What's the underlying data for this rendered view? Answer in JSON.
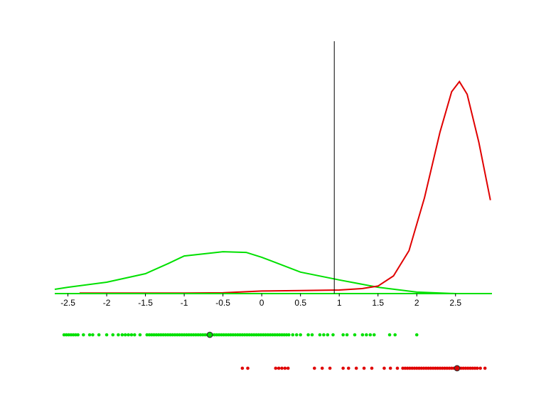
{
  "chart_data": {
    "type": "line",
    "xlim": [
      -2.67,
      2.97
    ],
    "ylim": [
      0,
      1
    ],
    "xticks": [
      -2.5,
      -2,
      -1.5,
      -1,
      -0.5,
      0,
      0.5,
      1,
      1.5,
      2,
      2.5
    ],
    "vline": 0.936,
    "series": [
      {
        "color": "#00e000",
        "x": [
          -2.67,
          -2.5,
          -2,
          -1.5,
          -1.2,
          -1,
          -0.5,
          -0.2,
          0,
          0.5,
          1,
          1.5,
          2,
          2.5,
          2.95
        ],
        "values": [
          0.017,
          0.025,
          0.045,
          0.079,
          0.12,
          0.149,
          0.166,
          0.163,
          0.144,
          0.085,
          0.054,
          0.025,
          0.006,
          0,
          0
        ],
        "rug": [
          -2.55,
          -2.52,
          -2.49,
          -2.46,
          -2.43,
          -2.4,
          -2.37,
          -2.3,
          -2.22,
          -2.18,
          -2.1,
          -2.0,
          -1.92,
          -1.85,
          -1.8,
          -1.76,
          -1.72,
          -1.68,
          -1.64,
          -1.57,
          -1.48,
          -1.45,
          -1.42,
          -1.39,
          -1.36,
          -1.33,
          -1.3,
          -1.27,
          -1.24,
          -1.21,
          -1.18,
          -1.15,
          -1.12,
          -1.09,
          -1.06,
          -1.03,
          -1.0,
          -0.97,
          -0.94,
          -0.91,
          -0.88,
          -0.85,
          -0.82,
          -0.79,
          -0.76,
          -0.73,
          -0.7,
          -0.67,
          -0.64,
          -0.61,
          -0.58,
          -0.55,
          -0.52,
          -0.49,
          -0.46,
          -0.43,
          -0.4,
          -0.37,
          -0.34,
          -0.31,
          -0.28,
          -0.25,
          -0.22,
          -0.19,
          -0.16,
          -0.13,
          -0.1,
          -0.07,
          -0.04,
          -0.01,
          0.02,
          0.05,
          0.08,
          0.11,
          0.14,
          0.17,
          0.2,
          0.23,
          0.26,
          0.29,
          0.32,
          0.35,
          0.4,
          0.45,
          0.5,
          0.6,
          0.65,
          0.75,
          0.8,
          0.85,
          0.92,
          1.05,
          1.1,
          1.2,
          1.3,
          1.35,
          1.4,
          1.45,
          1.65,
          1.72,
          2.0
        ],
        "mean": -0.67
      },
      {
        "color": "#e00000",
        "x": [
          -2.35,
          -1,
          -0.5,
          0,
          0.5,
          1,
          1.3,
          1.5,
          1.7,
          1.9,
          2.1,
          2.3,
          2.45,
          2.55,
          2.65,
          2.8,
          2.95
        ],
        "values": [
          0.002,
          0.002,
          0.003,
          0.01,
          0.012,
          0.014,
          0.02,
          0.03,
          0.07,
          0.17,
          0.38,
          0.64,
          0.8,
          0.84,
          0.79,
          0.6,
          0.37
        ],
        "rug": [
          -0.25,
          -0.18,
          0.18,
          0.22,
          0.26,
          0.3,
          0.34,
          0.68,
          0.78,
          0.88,
          1.05,
          1.12,
          1.22,
          1.32,
          1.42,
          1.58,
          1.66,
          1.75,
          1.82,
          1.85,
          1.88,
          1.91,
          1.94,
          1.97,
          2.0,
          2.03,
          2.06,
          2.09,
          2.12,
          2.15,
          2.18,
          2.21,
          2.24,
          2.27,
          2.3,
          2.33,
          2.36,
          2.39,
          2.42,
          2.45,
          2.48,
          2.51,
          2.54,
          2.57,
          2.6,
          2.63,
          2.66,
          2.69,
          2.72,
          2.75,
          2.78,
          2.82,
          2.88
        ],
        "mean": 2.52
      }
    ]
  }
}
